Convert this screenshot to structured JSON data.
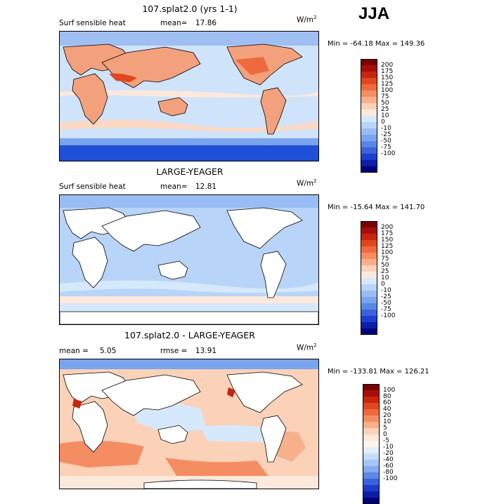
{
  "season": "JJA",
  "panels": [
    {
      "title": "107.splat2.0 (yrs 1-1)",
      "left_label": "Surf sensible heat",
      "stat_label": "mean=",
      "stat_value": "17.86",
      "units": "W/m",
      "units_exp": "2",
      "min_max": "Min = -64.18  Max = 149.36",
      "colorbar": {
        "colors": [
          "#7a0000",
          "#a50f0b",
          "#c8250f",
          "#e0461f",
          "#ee6a3e",
          "#f58d62",
          "#f8b08b",
          "#fbd2b8",
          "#fde9dc",
          "#d6e8fc",
          "#b8d4f8",
          "#98bdf4",
          "#7aa4ee",
          "#5a86e6",
          "#3c62dc",
          "#1f3ecd",
          "#0a1eaa",
          "#00007a"
        ],
        "ticks": [
          "200",
          "175",
          "150",
          "125",
          "100",
          "75",
          "50",
          "25",
          "10",
          "0",
          "-10",
          "-25",
          "-50",
          "-75",
          "-100"
        ]
      }
    },
    {
      "title": "LARGE-YEAGER",
      "left_label": "Surf sensible heat",
      "stat_label": "mean=",
      "stat_value": "12.81",
      "units": "W/m",
      "units_exp": "2",
      "min_max": "Min = -15.64  Max = 141.70",
      "colorbar": {
        "colors": [
          "#7a0000",
          "#a50f0b",
          "#c8250f",
          "#e0461f",
          "#ee6a3e",
          "#f58d62",
          "#f8b08b",
          "#fbd2b8",
          "#fde9dc",
          "#d6e8fc",
          "#b8d4f8",
          "#98bdf4",
          "#7aa4ee",
          "#5a86e6",
          "#3c62dc",
          "#1f3ecd",
          "#0a1eaa",
          "#00007a"
        ],
        "ticks": [
          "200",
          "175",
          "150",
          "125",
          "100",
          "75",
          "50",
          "25",
          "10",
          "0",
          "-10",
          "-25",
          "-50",
          "-75",
          "-100"
        ]
      }
    },
    {
      "title": "107.splat2.0 - LARGE-YEAGER",
      "left_label": "mean =",
      "left_value": "5.05",
      "stat_label": "rmse =",
      "stat_value": "13.91",
      "units": "W/m",
      "units_exp": "2",
      "min_max": "Min = -133.81  Max = 126.21",
      "colorbar": {
        "colors": [
          "#7a0000",
          "#a50f0b",
          "#c8250f",
          "#e0461f",
          "#ee6a3e",
          "#f58d62",
          "#f8b08b",
          "#fbd2b8",
          "#fde9dc",
          "#fff4ec",
          "#e2eefd",
          "#c6dbfa",
          "#a6c6f5",
          "#84aaef",
          "#5f88e6",
          "#3a62d9",
          "#1e3cc8",
          "#0a1ea8",
          "#00007a"
        ],
        "ticks": [
          "100",
          "80",
          "60",
          "40",
          "20",
          "10",
          "5",
          "0",
          "-5",
          "-10",
          "-20",
          "-40",
          "-60",
          "-80",
          "-100"
        ]
      }
    }
  ]
}
